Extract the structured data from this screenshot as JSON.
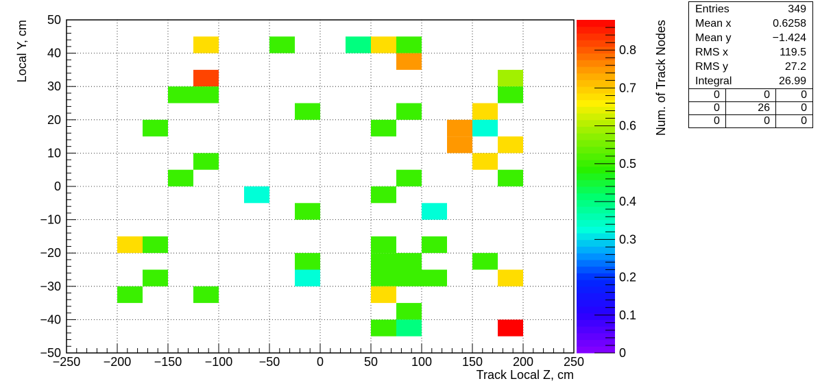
{
  "chart_data": {
    "type": "heatmap",
    "title": "",
    "xlabel": "Track Local Z, cm",
    "ylabel": "Local Y, cm",
    "zlabel": "Num. of Track Nodes",
    "xlim": [
      -250,
      250
    ],
    "ylim": [
      -50,
      50
    ],
    "zlim": [
      0,
      0.88
    ],
    "x_ticks": [
      "−250",
      "−200",
      "−150",
      "−100",
      "−50",
      "0",
      "50",
      "100",
      "150",
      "200",
      "250"
    ],
    "y_ticks": [
      "−50",
      "−40",
      "−30",
      "−20",
      "−10",
      "0",
      "10",
      "20",
      "30",
      "40",
      "50"
    ],
    "z_ticks": [
      "0",
      "0.1",
      "0.2",
      "0.3",
      "0.4",
      "0.5",
      "0.6",
      "0.7",
      "0.8"
    ],
    "bin_size": {
      "x": 25,
      "y": 10
    },
    "grid": true,
    "cells": [
      {
        "x": -125,
        "y": 40,
        "z": 0.68
      },
      {
        "x": -50,
        "y": 40,
        "z": 0.5
      },
      {
        "x": 25,
        "y": 40,
        "z": 0.4
      },
      {
        "x": 50,
        "y": 40,
        "z": 0.68
      },
      {
        "x": 75,
        "y": 40,
        "z": 0.5
      },
      {
        "x": 75,
        "y": 35,
        "z": 0.75
      },
      {
        "x": -125,
        "y": 30,
        "z": 0.82
      },
      {
        "x": 175,
        "y": 30,
        "z": 0.59
      },
      {
        "x": -150,
        "y": 25,
        "z": 0.5
      },
      {
        "x": -125,
        "y": 25,
        "z": 0.5
      },
      {
        "x": 175,
        "y": 25,
        "z": 0.5
      },
      {
        "x": -25,
        "y": 20,
        "z": 0.5
      },
      {
        "x": 75,
        "y": 20,
        "z": 0.5
      },
      {
        "x": 150,
        "y": 20,
        "z": 0.68
      },
      {
        "x": -175,
        "y": 15,
        "z": 0.5
      },
      {
        "x": 50,
        "y": 15,
        "z": 0.5
      },
      {
        "x": 125,
        "y": 15,
        "z": 0.75
      },
      {
        "x": 150,
        "y": 15,
        "z": 0.33
      },
      {
        "x": 125,
        "y": 10,
        "z": 0.75
      },
      {
        "x": 175,
        "y": 10,
        "z": 0.68
      },
      {
        "x": -125,
        "y": 5,
        "z": 0.5
      },
      {
        "x": 150,
        "y": 5,
        "z": 0.68
      },
      {
        "x": -150,
        "y": 0,
        "z": 0.5
      },
      {
        "x": 75,
        "y": 0,
        "z": 0.5
      },
      {
        "x": 175,
        "y": 0,
        "z": 0.5
      },
      {
        "x": -75,
        "y": -5,
        "z": 0.33
      },
      {
        "x": 50,
        "y": -5,
        "z": 0.5
      },
      {
        "x": -25,
        "y": -10,
        "z": 0.5
      },
      {
        "x": 100,
        "y": -10,
        "z": 0.33
      },
      {
        "x": -200,
        "y": -20,
        "z": 0.68
      },
      {
        "x": -175,
        "y": -20,
        "z": 0.5
      },
      {
        "x": 50,
        "y": -20,
        "z": 0.5
      },
      {
        "x": 100,
        "y": -20,
        "z": 0.5
      },
      {
        "x": -25,
        "y": -25,
        "z": 0.5
      },
      {
        "x": 50,
        "y": -25,
        "z": 0.5
      },
      {
        "x": 75,
        "y": -25,
        "z": 0.5
      },
      {
        "x": 150,
        "y": -25,
        "z": 0.5
      },
      {
        "x": -175,
        "y": -30,
        "z": 0.5
      },
      {
        "x": -25,
        "y": -30,
        "z": 0.33
      },
      {
        "x": 50,
        "y": -30,
        "z": 0.5
      },
      {
        "x": 75,
        "y": -30,
        "z": 0.5
      },
      {
        "x": 100,
        "y": -30,
        "z": 0.5
      },
      {
        "x": 175,
        "y": -30,
        "z": 0.68
      },
      {
        "x": -200,
        "y": -35,
        "z": 0.5
      },
      {
        "x": -125,
        "y": -35,
        "z": 0.5
      },
      {
        "x": 50,
        "y": -35,
        "z": 0.68
      },
      {
        "x": 75,
        "y": -40,
        "z": 0.5
      },
      {
        "x": 50,
        "y": -45,
        "z": 0.5
      },
      {
        "x": 75,
        "y": -45,
        "z": 0.4
      },
      {
        "x": 175,
        "y": -45,
        "z": 0.88
      }
    ]
  },
  "stats": {
    "rows": [
      {
        "label": "Entries",
        "value": "349"
      },
      {
        "label": "Mean x",
        "value": "0.6258"
      },
      {
        "label": "Mean y",
        "value": "−1.424"
      },
      {
        "label": "RMS x",
        "value": "119.5"
      },
      {
        "label": "RMS y",
        "value": "27.2"
      },
      {
        "label": "Integral",
        "value": "26.99"
      }
    ],
    "grid": [
      [
        "0",
        "0",
        "0"
      ],
      [
        "0",
        "26",
        "0"
      ],
      [
        "0",
        "0",
        "0"
      ]
    ]
  }
}
